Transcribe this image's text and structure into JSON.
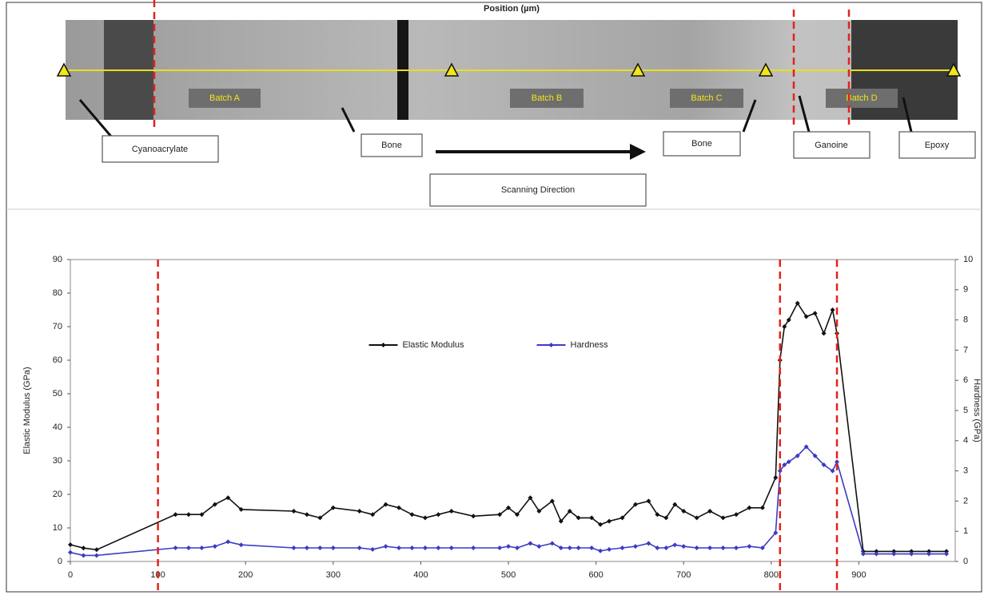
{
  "micrograph": {
    "title": "Position (µm)",
    "batch_labels": [
      "Batch A",
      "Batch B",
      "Batch C",
      "Batch D"
    ],
    "callouts": [
      "Cyanoacrylate",
      "Bone",
      "Bone",
      "Ganoine",
      "Epoxy"
    ],
    "direction": "Scanning Direction"
  },
  "chart_data": {
    "type": "line",
    "x": [
      0,
      15,
      30,
      120,
      135,
      150,
      165,
      180,
      195,
      255,
      270,
      285,
      300,
      330,
      345,
      360,
      375,
      390,
      405,
      420,
      435,
      460,
      490,
      500,
      510,
      525,
      535,
      550,
      560,
      570,
      580,
      595,
      605,
      615,
      630,
      645,
      660,
      670,
      680,
      690,
      700,
      715,
      730,
      745,
      760,
      775,
      790,
      805,
      810,
      815,
      820,
      830,
      840,
      850,
      860,
      870,
      875,
      905,
      920,
      940,
      960,
      980,
      1000
    ],
    "series": [
      {
        "name": "Elastic Modulus",
        "color": "#111111",
        "axis": "y",
        "values": [
          5,
          4,
          3.5,
          14,
          14,
          14,
          17,
          19,
          15.5,
          15,
          14,
          13,
          16,
          15,
          14,
          17,
          16,
          14,
          13,
          14,
          15,
          13.5,
          14,
          16,
          14,
          19,
          15,
          18,
          12,
          15,
          13,
          13,
          11,
          12,
          13,
          17,
          18,
          14,
          13,
          17,
          15,
          13,
          15,
          13,
          14,
          16,
          16,
          25,
          60,
          70,
          72,
          77,
          73,
          74,
          68,
          75,
          68,
          3,
          3,
          3,
          3,
          3,
          3
        ]
      },
      {
        "name": "Hardness",
        "color": "#3b3bc4",
        "axis": "y2",
        "values": [
          0.3,
          0.2,
          0.2,
          0.45,
          0.45,
          0.45,
          0.5,
          0.65,
          0.55,
          0.45,
          0.45,
          0.45,
          0.45,
          0.45,
          0.4,
          0.5,
          0.45,
          0.45,
          0.45,
          0.45,
          0.45,
          0.45,
          0.45,
          0.5,
          0.45,
          0.6,
          0.5,
          0.6,
          0.45,
          0.45,
          0.45,
          0.45,
          0.35,
          0.4,
          0.45,
          0.5,
          0.6,
          0.45,
          0.45,
          0.55,
          0.5,
          0.45,
          0.45,
          0.45,
          0.45,
          0.5,
          0.45,
          0.95,
          3.0,
          3.2,
          3.3,
          3.5,
          3.8,
          3.5,
          3.2,
          3.0,
          3.3,
          0.25,
          0.25,
          0.25,
          0.25,
          0.25,
          0.25
        ]
      }
    ],
    "y_label": "Elastic Modulus (GPa)",
    "y2_label": "Hardness (GPa)",
    "xlim": [
      0,
      1010
    ],
    "xticks": [
      0,
      100,
      200,
      300,
      400,
      500,
      600,
      700,
      800,
      900
    ],
    "ylim": [
      0,
      90
    ],
    "yticks": [
      0,
      10,
      20,
      30,
      40,
      50,
      60,
      70,
      80,
      90
    ],
    "y2lim": [
      0,
      10
    ],
    "y2ticks": [
      0,
      1,
      2,
      3,
      4,
      5,
      6,
      7,
      8,
      9,
      10
    ],
    "vlines": [
      100,
      810,
      875
    ],
    "vline_color": "#e2231a",
    "legend": "center"
  }
}
